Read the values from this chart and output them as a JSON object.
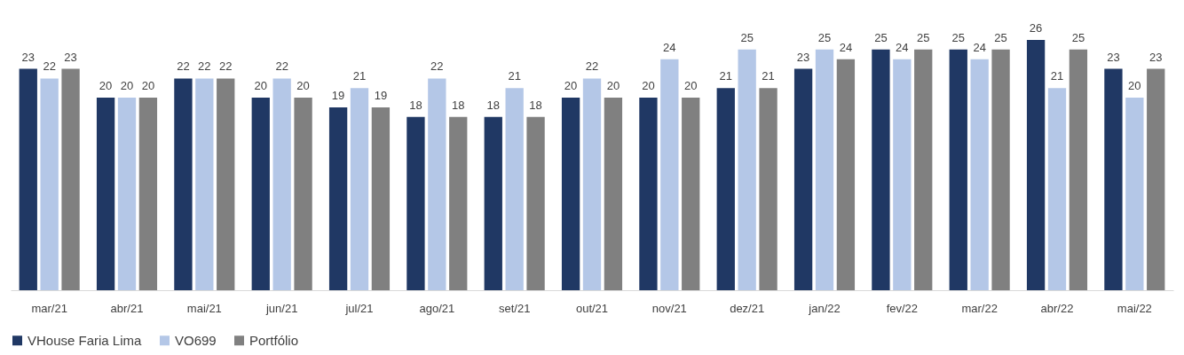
{
  "chart_data": {
    "type": "bar",
    "categories": [
      "mar/21",
      "abr/21",
      "mai/21",
      "jun/21",
      "jul/21",
      "ago/21",
      "set/21",
      "out/21",
      "nov/21",
      "dez/21",
      "jan/22",
      "fev/22",
      "mar/22",
      "abr/22",
      "mai/22"
    ],
    "series": [
      {
        "name": "VHouse Faria Lima",
        "color": "#203864",
        "values": [
          23,
          20,
          22,
          20,
          19,
          18,
          18,
          20,
          20,
          21,
          23,
          25,
          25,
          26,
          23
        ]
      },
      {
        "name": "VO699",
        "color": "#b4c7e7",
        "values": [
          22,
          20,
          22,
          22,
          21,
          22,
          21,
          22,
          24,
          25,
          25,
          24,
          24,
          21,
          20
        ]
      },
      {
        "name": "Portfólio",
        "color": "#808080",
        "values": [
          23,
          20,
          22,
          20,
          19,
          18,
          18,
          20,
          20,
          21,
          24,
          25,
          25,
          25,
          23
        ]
      }
    ],
    "tick_labels": "x",
    "data_labels": true,
    "legend": "bottom",
    "grid": false
  }
}
